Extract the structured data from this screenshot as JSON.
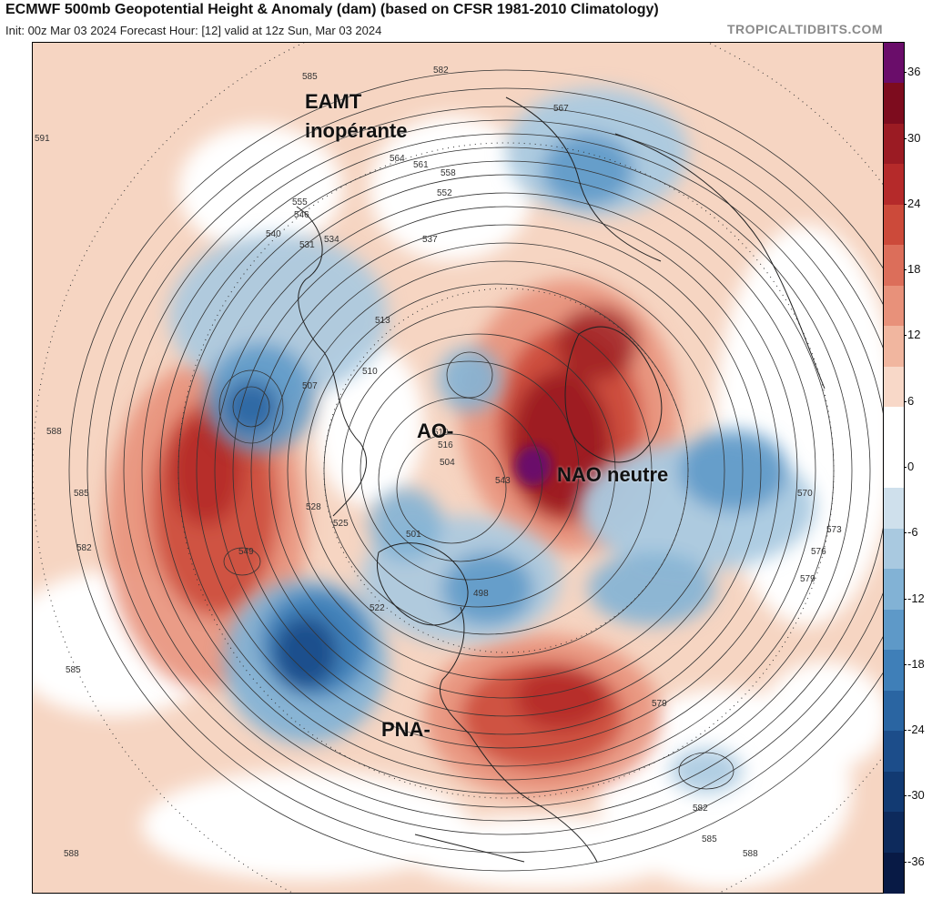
{
  "header": {
    "title": "ECMWF 500mb Geopotential Height & Anomaly (dam) (based on CFSR 1981-2010 Climatology)",
    "subtitle": "Init: 00z Mar 03 2024   Forecast Hour: [12]   valid at 12z Sun, Mar 03 2024",
    "brand": "TROPICALTIDBITS.COM"
  },
  "annotations": {
    "eamt_line1": "EAMT",
    "eamt_line2": "inopérante",
    "ao": "AO-",
    "nao": "NAO neutre",
    "pna": "PNA-"
  },
  "contour_labels": [
    "585",
    "582",
    "591",
    "588",
    "585",
    "582",
    "585",
    "588",
    "588",
    "585",
    "582",
    "579",
    "579",
    "576",
    "573",
    "570",
    "567",
    "564",
    "561",
    "558",
    "555",
    "552",
    "549",
    "546",
    "543",
    "540",
    "537",
    "534",
    "531",
    "528",
    "525",
    "522",
    "519",
    "516",
    "513",
    "510",
    "507",
    "504",
    "501",
    "498"
  ],
  "colorbar": {
    "ticks": [
      "36",
      "30",
      "24",
      "18",
      "12",
      "6",
      "0",
      "-6",
      "-12",
      "-18",
      "-24",
      "-30",
      "-36"
    ],
    "colors": [
      "#6a0d6a",
      "#7d0c1e",
      "#9b1b23",
      "#b52a2a",
      "#cc4a3a",
      "#dc6e5a",
      "#e8917a",
      "#f1b69f",
      "#f8d8c8",
      "#ffffff",
      "#ffffff",
      "#cfe0ec",
      "#a9c9e0",
      "#82b2d5",
      "#5e99c8",
      "#3f7fb8",
      "#2a65a2",
      "#1c4d8a",
      "#123a72",
      "#0d2a5c",
      "#081a45"
    ]
  }
}
